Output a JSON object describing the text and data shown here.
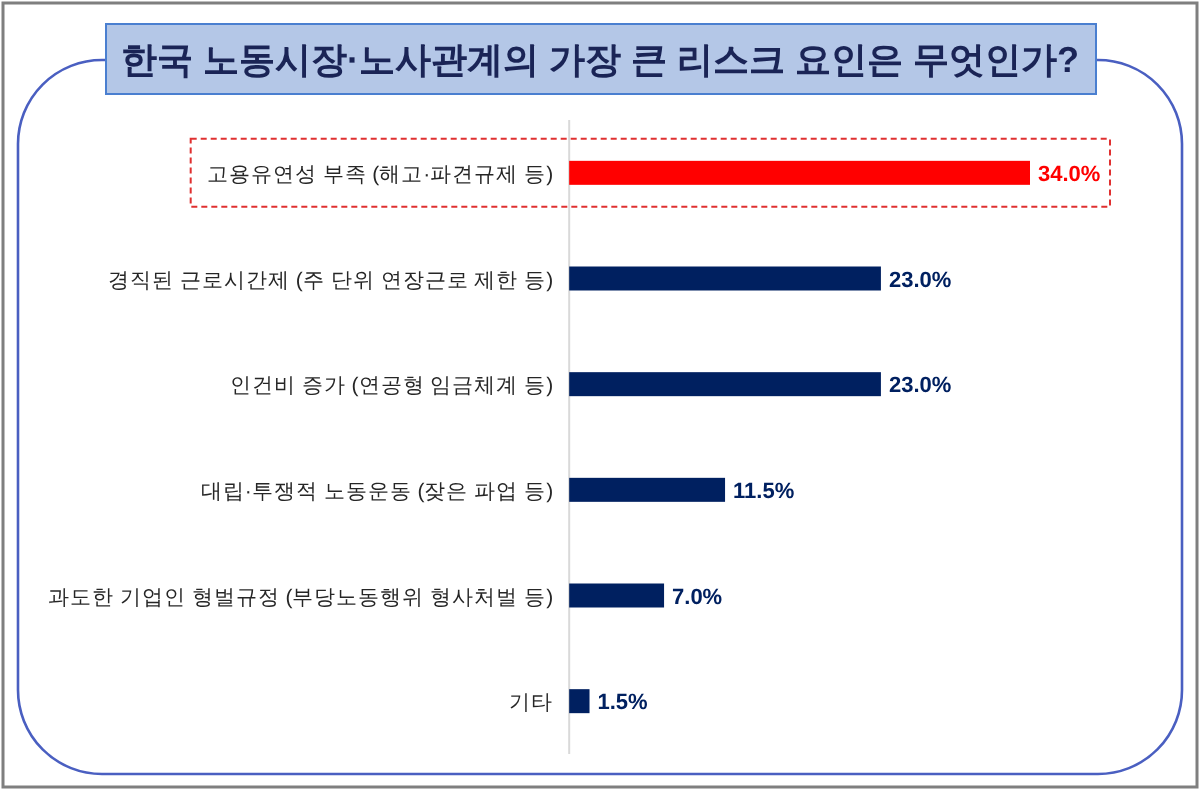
{
  "chart_data": {
    "type": "bar",
    "orientation": "horizontal",
    "title": "한국 노동시장·노사관계의 가장 큰 리스크 요인은 무엇인가?",
    "categories": [
      "고용유연성 부족 (해고·파견규제 등)",
      "경직된 근로시간제 (주 단위 연장근로 제한 등)",
      "인건비 증가 (연공형 임금체계 등)",
      "대립·투쟁적 노동운동 (잦은 파업 등)",
      "과도한 기업인 형벌규정 (부당노동행위 형사처벌 등)",
      "기타"
    ],
    "values": [
      34.0,
      23.0,
      23.0,
      11.5,
      7.0,
      1.5
    ],
    "colors": [
      "#ff0000",
      "#002060",
      "#002060",
      "#002060",
      "#002060",
      "#002060"
    ],
    "value_labels": [
      "34.0%",
      "23.0%",
      "23.0%",
      "11.5%",
      "7.0%",
      "1.5%"
    ]
  }
}
